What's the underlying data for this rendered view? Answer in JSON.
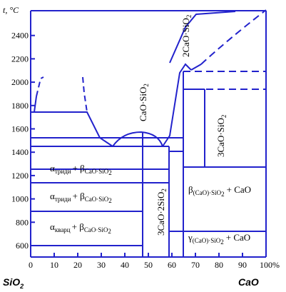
{
  "chart_data": {
    "type": "diagram",
    "ylabel": "t, °C",
    "xlabel": "%",
    "x_ticks": [
      "0",
      "10",
      "20",
      "30",
      "40",
      "50",
      "60",
      "70",
      "80",
      "90",
      "100"
    ],
    "y_ticks": [
      "600",
      "800",
      "1000",
      "1200",
      "1400",
      "1600",
      "1800",
      "2000",
      "2200",
      "2400"
    ],
    "xlim": [
      0,
      100
    ],
    "ylim": [
      550,
      2600
    ],
    "left_component": "SiO",
    "left_component_sub": "2",
    "right_component": "CaO",
    "line_color": "#2222cc",
    "compounds": [
      {
        "name": "2CaO·SiO",
        "sub": "2",
        "x": 65
      },
      {
        "name": "CaO·SiO",
        "sub": "2",
        "x": 48
      },
      {
        "name": "3CaO·SiO",
        "sub": "2",
        "x": 73
      },
      {
        "name": "3CaO·2SiO",
        "sub": "2",
        "x": 58
      }
    ],
    "regions": [
      {
        "main1": "α",
        "sub1": "триди",
        "plus": "+ β",
        "sub2": "CaO·SiO",
        "sub3": "2"
      },
      {
        "main1": "α",
        "sub1": "триди",
        "plus": "+ β",
        "sub2": "CaO·SiO",
        "sub3": "2"
      },
      {
        "main1": "α",
        "sub1": "кварц",
        "plus": "+ β",
        "sub2": "CaO·SiO",
        "sub3": "2"
      },
      {
        "main1": "β",
        "sub1": "(CaO)",
        "mid": "·SiO",
        "sub2": "2",
        "plus": "+ CaO"
      },
      {
        "main1": "γ",
        "sub1": "(CaO)",
        "mid": "·SiO",
        "sub2": "2",
        "plus": "+ CaO"
      }
    ]
  }
}
